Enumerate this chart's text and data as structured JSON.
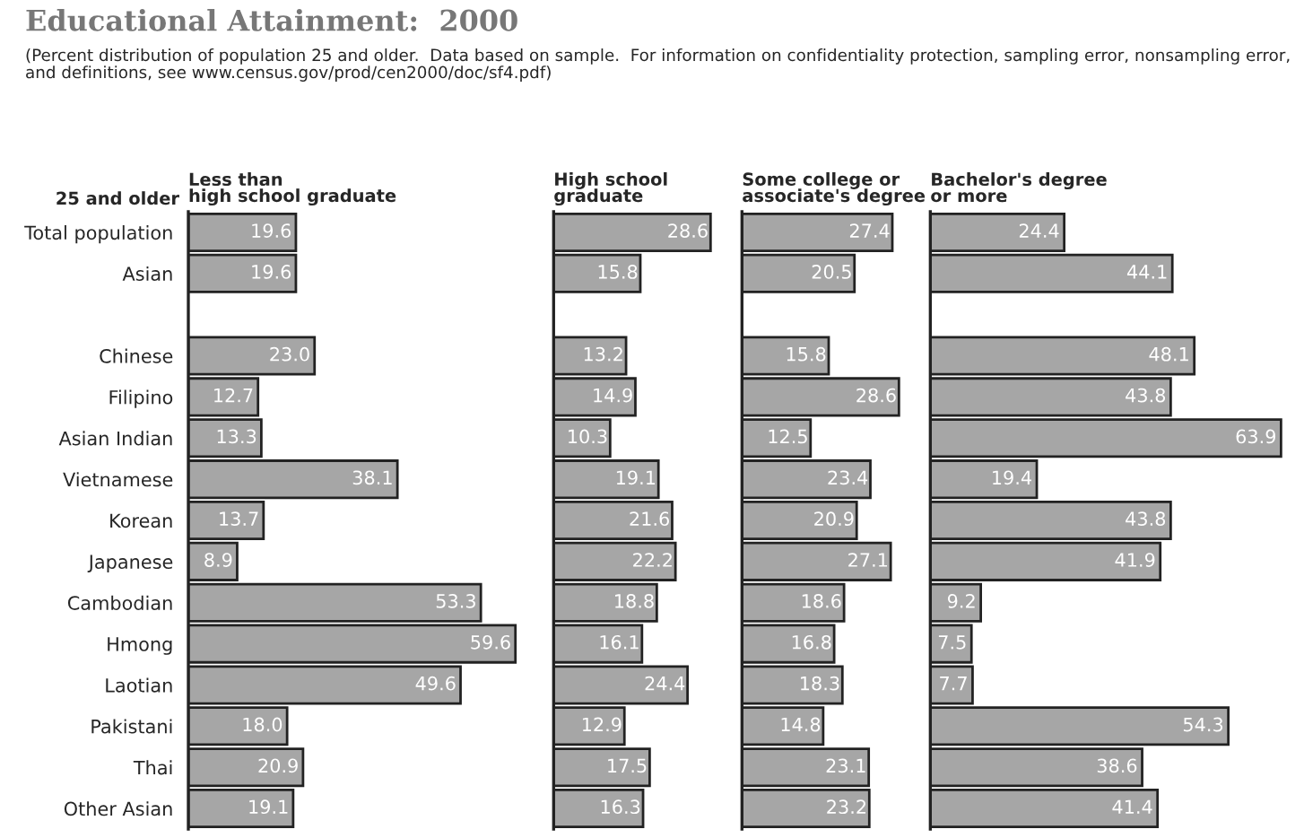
{
  "chart_data": [
    {
      "type": "bar",
      "orientation": "horizontal",
      "title": "Less than\nhigh school graduate",
      "categories": [
        "Total population",
        "Asian",
        null,
        "Chinese",
        "Filipino",
        "Asian Indian",
        "Vietnamese",
        "Korean",
        "Japanese",
        "Cambodian",
        "Hmong",
        "Laotian",
        "Pakistani",
        "Thai",
        "Other Asian"
      ],
      "values": [
        19.6,
        19.6,
        null,
        23.0,
        12.7,
        13.3,
        38.1,
        13.7,
        8.9,
        53.3,
        59.6,
        49.6,
        18.0,
        20.9,
        19.1
      ],
      "value_labels": [
        "19.6",
        "19.6",
        null,
        "23.0",
        "12.7",
        "13.3",
        "38.1",
        "13.7",
        "8.9",
        "53.3",
        "59.6",
        "49.6",
        "18.0",
        "20.9",
        "19.1"
      ],
      "color": "#a6a6a6",
      "tick_labels": "y",
      "annotations": [
        "Educational Attainment:  2000",
        "(Percent distribution of population 25 and older.  Data based on sample.  For information on confidentiality protection, sampling error, nonsampling error, and definitions, see www.census.gov/prod/cen2000/doc/sf4.pdf)",
        "25 and older"
      ]
    },
    {
      "type": "bar",
      "orientation": "horizontal",
      "title": "High school\ngraduate",
      "values": [
        28.6,
        15.8,
        null,
        13.2,
        14.9,
        10.3,
        19.1,
        21.6,
        22.2,
        18.8,
        16.1,
        24.4,
        12.9,
        17.5,
        16.3
      ],
      "value_labels": [
        "28.6",
        "15.8",
        null,
        "13.2",
        "14.9",
        "10.3",
        "19.1",
        "21.6",
        "22.2",
        "18.8",
        "16.1",
        "24.4",
        "12.9",
        "17.5",
        "16.3"
      ],
      "color": "#a6a6a6",
      "tick_labels": false
    },
    {
      "type": "bar",
      "orientation": "horizontal",
      "title": "Some college or\nassociate's degree",
      "values": [
        27.4,
        20.5,
        null,
        15.8,
        28.6,
        12.5,
        23.4,
        20.9,
        27.1,
        18.6,
        16.8,
        18.3,
        14.8,
        23.1,
        23.2
      ],
      "value_labels": [
        "27.4",
        "20.5",
        null,
        "15.8",
        "28.6",
        "12.5",
        "23.4",
        "20.9",
        "27.1",
        "18.6",
        "16.8",
        "18.3",
        "14.8",
        "23.1",
        "23.2"
      ],
      "color": "#a6a6a6",
      "tick_labels": false
    },
    {
      "type": "bar",
      "orientation": "horizontal",
      "title": "Bachelor's degree\nor more",
      "values": [
        24.4,
        44.1,
        null,
        48.1,
        43.8,
        63.9,
        19.4,
        43.8,
        41.9,
        9.2,
        7.5,
        7.7,
        54.3,
        38.6,
        41.4
      ],
      "value_labels": [
        "24.4",
        "44.1",
        null,
        "48.1",
        "43.8",
        "63.9",
        "19.4",
        "43.8",
        "41.9",
        "9.2",
        "7.5",
        "7.7",
        "54.3",
        "38.6",
        "41.4"
      ],
      "color": "#a6a6a6",
      "tick_labels": false
    }
  ]
}
